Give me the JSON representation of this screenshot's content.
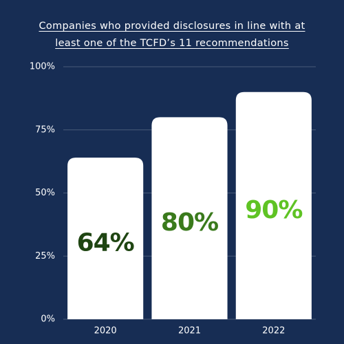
{
  "chart_data": {
    "type": "bar",
    "title": "Companies who provided disclosures in line with at least one of the TCFD’s 11 recommendations",
    "categories": [
      "2020",
      "2021",
      "2022"
    ],
    "values": [
      64,
      80,
      90
    ],
    "value_labels": [
      "64%",
      "80%",
      "90%"
    ],
    "color": "#ffffff",
    "label_colors": [
      "#1f4512",
      "#3a7a1c",
      "#5fc324"
    ],
    "ylim": [
      0,
      100
    ],
    "yticks": [
      {
        "value": 0,
        "label": "0%"
      },
      {
        "value": 25,
        "label": "25%"
      },
      {
        "value": 50,
        "label": "50%"
      },
      {
        "value": 75,
        "label": "75%"
      },
      {
        "value": 100,
        "label": "100%"
      }
    ],
    "grid": true
  }
}
